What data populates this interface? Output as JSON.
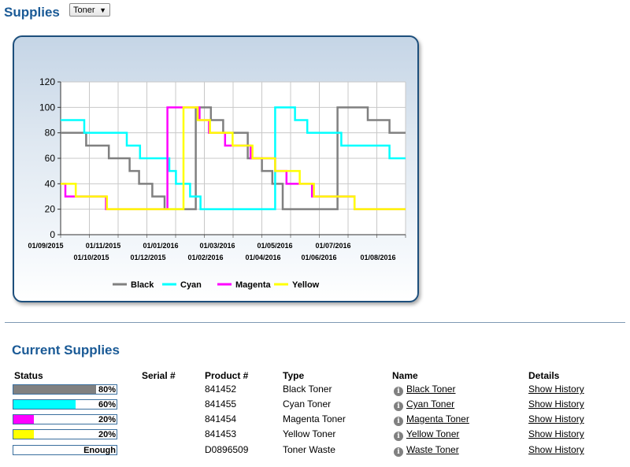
{
  "page": {
    "title": "Supplies",
    "filter": {
      "selected": "Toner"
    }
  },
  "current": {
    "title": "Current Supplies",
    "columns": {
      "status": "Status",
      "serial": "Serial #",
      "product": "Product #",
      "type": "Type",
      "name": "Name",
      "details": "Details"
    },
    "rows": [
      {
        "status_label": "80%",
        "level": 0.8,
        "color": "#808080",
        "serial": "",
        "product": "841452",
        "type": "Black Toner",
        "name": "Black Toner",
        "details": "Show History"
      },
      {
        "status_label": "60%",
        "level": 0.6,
        "color": "#00ffff",
        "serial": "",
        "product": "841455",
        "type": "Cyan Toner",
        "name": "Cyan Toner",
        "details": "Show History"
      },
      {
        "status_label": "20%",
        "level": 0.2,
        "color": "#ff00ff",
        "serial": "",
        "product": "841454",
        "type": "Magenta Toner",
        "name": "Magenta Toner",
        "details": "Show History"
      },
      {
        "status_label": "20%",
        "level": 0.2,
        "color": "#ffff00",
        "serial": "",
        "product": "841453",
        "type": "Yellow Toner",
        "name": "Yellow Toner",
        "details": "Show History"
      },
      {
        "status_label": "Enough",
        "level": 0,
        "color": "#ffffff",
        "serial": "",
        "product": "D0896509",
        "type": "Toner Waste",
        "name": "Waste Toner",
        "details": "Show History"
      }
    ]
  },
  "chart_data": {
    "type": "line",
    "x_start": "2015-09-01",
    "x_end": "2016-08-31",
    "ylim": [
      0,
      120
    ],
    "yticks": [
      0,
      20,
      40,
      60,
      80,
      100,
      120
    ],
    "xticks_top": [
      "01/09/2015",
      "01/11/2015",
      "01/01/2016",
      "01/03/2016",
      "01/05/2016",
      "01/07/2016"
    ],
    "xticks_bottom": [
      "01/10/2015",
      "01/12/2015",
      "01/02/2016",
      "01/04/2016",
      "01/06/2016",
      "01/08/2016"
    ],
    "grid": true,
    "legend_position": "bottom",
    "series": [
      {
        "name": "Black",
        "color": "#808080",
        "x": [
          "2015-09-01",
          "2015-09-28",
          "2015-10-22",
          "2015-11-13",
          "2015-11-23",
          "2015-12-07",
          "2015-12-20",
          "2016-01-20",
          "2016-01-22",
          "2016-02-07",
          "2016-02-20",
          "2016-03-17",
          "2016-04-01",
          "2016-04-12",
          "2016-04-23",
          "2016-06-20",
          "2016-07-22",
          "2016-08-14",
          "2016-08-31"
        ],
        "values": [
          80,
          70,
          60,
          50,
          40,
          30,
          20,
          20,
          100,
          90,
          80,
          60,
          50,
          40,
          20,
          100,
          90,
          80,
          80
        ]
      },
      {
        "name": "Cyan",
        "color": "#00ffff",
        "x": [
          "2015-09-01",
          "2015-09-26",
          "2015-11-10",
          "2015-11-24",
          "2015-12-25",
          "2016-01-01",
          "2016-01-16",
          "2016-01-27",
          "2016-04-12",
          "2016-04-15",
          "2016-05-06",
          "2016-05-19",
          "2016-06-24",
          "2016-08-14",
          "2016-08-31"
        ],
        "values": [
          90,
          80,
          70,
          60,
          50,
          40,
          30,
          20,
          20,
          100,
          90,
          80,
          70,
          60,
          60
        ]
      },
      {
        "name": "Magenta",
        "color": "#ff00ff",
        "x": [
          "2015-09-01",
          "2015-09-06",
          "2015-10-19",
          "2015-12-21",
          "2015-12-23",
          "2016-01-26",
          "2016-02-05",
          "2016-02-22",
          "2016-03-20",
          "2016-04-15",
          "2016-04-27",
          "2016-05-24",
          "2016-06-01",
          "2016-07-08",
          "2016-08-31"
        ],
        "values": [
          40,
          30,
          20,
          20,
          100,
          90,
          80,
          70,
          60,
          50,
          40,
          30,
          30,
          20,
          20
        ]
      },
      {
        "name": "Yellow",
        "color": "#ffff00",
        "x": [
          "2015-09-01",
          "2015-09-17",
          "2015-10-20",
          "2016-01-07",
          "2016-01-09",
          "2016-01-24",
          "2016-02-06",
          "2016-03-01",
          "2016-03-22",
          "2016-04-15",
          "2016-05-11",
          "2016-05-26",
          "2016-07-08",
          "2016-08-31"
        ],
        "values": [
          40,
          30,
          20,
          20,
          100,
          90,
          80,
          70,
          60,
          50,
          40,
          30,
          20,
          20
        ]
      }
    ]
  }
}
